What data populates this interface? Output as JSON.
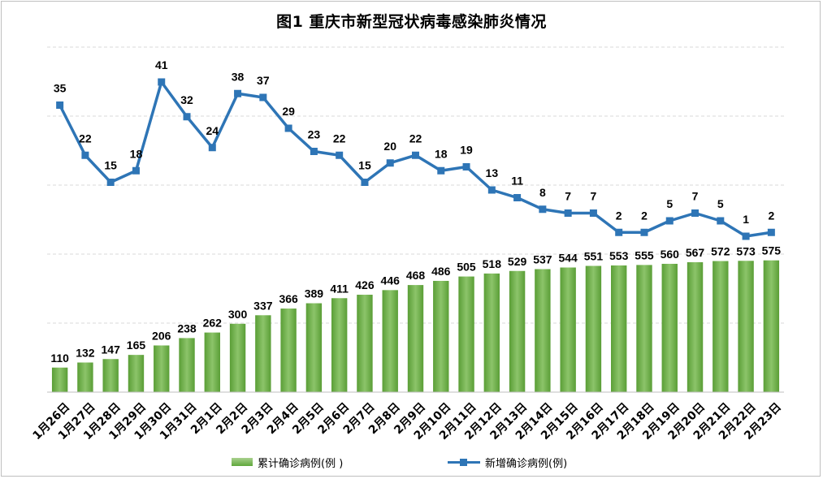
{
  "title": "图1   重庆市新型冠状病毒感染肺炎情况",
  "legend": {
    "cumulative_label": "累计确诊病例(例 )",
    "new_label": "新增确诊病例(例)"
  },
  "colors": {
    "bar": "#70ad47",
    "line": "#2e75b6",
    "grid": "#d9d9d9"
  },
  "chart_data": {
    "type": "bar+line",
    "categories": [
      "1月26日",
      "1月27日",
      "1月28日",
      "1月29日",
      "1月30日",
      "1月31日",
      "2月1日",
      "2月2日",
      "2月3日",
      "2月4日",
      "2月5日",
      "2月6日",
      "2月7日",
      "2月8日",
      "2月9日",
      "2月10日",
      "2月11日",
      "2月12日",
      "2月13日",
      "2月14日",
      "2月15日",
      "2月16日",
      "2月17日",
      "2月18日",
      "2月19日",
      "2月20日",
      "2月21日",
      "2月22日",
      "2月23日"
    ],
    "series": [
      {
        "name": "累计确诊病例(例 )",
        "type": "bar",
        "values": [
          110,
          132,
          147,
          165,
          206,
          238,
          262,
          300,
          337,
          366,
          389,
          411,
          426,
          446,
          468,
          486,
          505,
          518,
          529,
          537,
          544,
          551,
          553,
          555,
          560,
          567,
          572,
          573,
          575
        ]
      },
      {
        "name": "新增确诊病例(例)",
        "type": "line",
        "values": [
          35,
          22,
          15,
          18,
          41,
          32,
          24,
          38,
          37,
          29,
          23,
          22,
          15,
          20,
          22,
          18,
          19,
          13,
          11,
          8,
          7,
          7,
          2,
          2,
          5,
          7,
          5,
          1,
          2
        ]
      }
    ],
    "grid": true,
    "legend_position": "bottom"
  }
}
